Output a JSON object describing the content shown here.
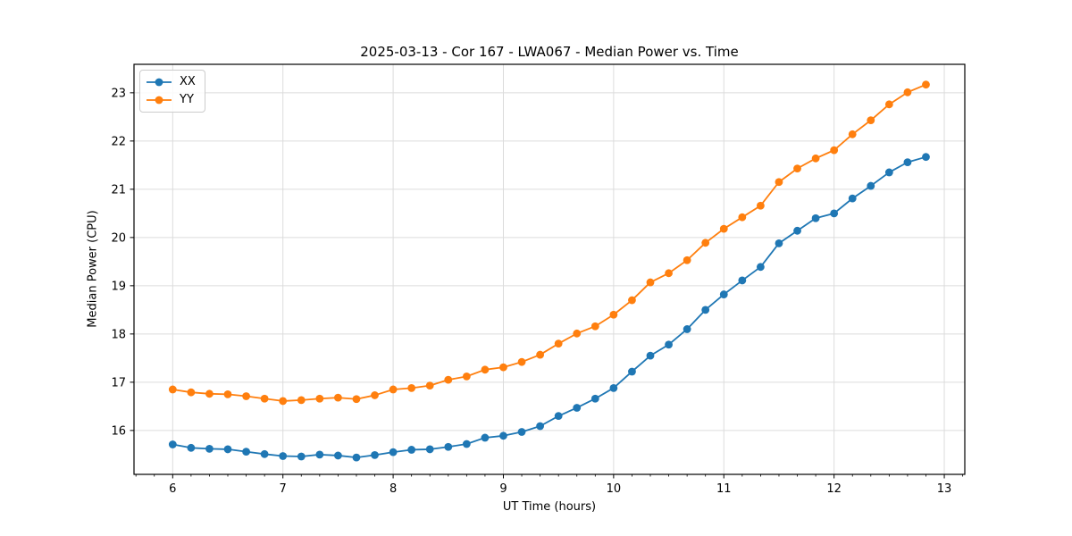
{
  "title": "2025-03-13 - Cor 167 - LWA067 - Median Power vs. Time",
  "chart_data": {
    "type": "line",
    "title": "2025-03-13 - Cor 167 - LWA067 - Median Power vs. Time",
    "xlabel": "UT Time (hours)",
    "ylabel": "Median Power (CPU)",
    "xlim": [
      5.649,
      13.186
    ],
    "ylim": [
      15.09,
      23.59
    ],
    "x_major_ticks": [
      6,
      7,
      8,
      9,
      10,
      11,
      12,
      13
    ],
    "x_major_tick_labels": [
      "6",
      "7",
      "8",
      "9",
      "10",
      "11",
      "12",
      "13"
    ],
    "x_minor_tick_step": 0.166667,
    "y_major_ticks": [
      16,
      17,
      18,
      19,
      20,
      21,
      22,
      23
    ],
    "y_major_tick_labels": [
      "16",
      "17",
      "18",
      "19",
      "20",
      "21",
      "22",
      "23"
    ],
    "grid": true,
    "grid_color": "#dcdcdc",
    "spine_color": "#000000",
    "background": "#ffffff",
    "legend_position": "upper-left",
    "x": [
      6.0,
      6.1667,
      6.3333,
      6.5,
      6.6667,
      6.8333,
      7.0,
      7.1667,
      7.3333,
      7.5,
      7.6667,
      7.8333,
      8.0,
      8.1667,
      8.3333,
      8.5,
      8.6667,
      8.8333,
      9.0,
      9.1667,
      9.3333,
      9.5,
      9.6667,
      9.8333,
      10.0,
      10.1667,
      10.3333,
      10.5,
      10.6667,
      10.8333,
      11.0,
      11.1667,
      11.3333,
      11.5,
      11.6667,
      11.8333,
      12.0,
      12.1667,
      12.3333,
      12.5,
      12.6667,
      12.8333
    ],
    "series": [
      {
        "name": "XX",
        "color": "#1f77b4",
        "values": [
          15.71,
          15.64,
          15.62,
          15.61,
          15.56,
          15.51,
          15.47,
          15.46,
          15.5,
          15.48,
          15.44,
          15.49,
          15.55,
          15.6,
          15.61,
          15.66,
          15.72,
          15.85,
          15.89,
          15.97,
          16.09,
          16.3,
          16.47,
          16.66,
          16.88,
          17.22,
          17.55,
          17.78,
          18.1,
          18.5,
          18.82,
          19.11,
          19.39,
          19.88,
          20.14,
          20.4,
          20.5,
          20.81,
          21.07,
          21.35,
          21.56,
          21.67
        ]
      },
      {
        "name": "YY",
        "color": "#ff7f0e",
        "values": [
          16.85,
          16.79,
          16.76,
          16.75,
          16.71,
          16.66,
          16.61,
          16.63,
          16.66,
          16.68,
          16.65,
          16.73,
          16.85,
          16.88,
          16.93,
          17.05,
          17.12,
          17.26,
          17.31,
          17.42,
          17.57,
          17.8,
          18.01,
          18.16,
          18.4,
          18.7,
          19.07,
          19.26,
          19.53,
          19.89,
          20.18,
          20.42,
          20.66,
          21.15,
          21.43,
          21.64,
          21.81,
          22.14,
          22.43,
          22.76,
          23.01,
          23.17
        ]
      }
    ]
  },
  "legend": {
    "items": [
      {
        "label": "XX",
        "color": "#1f77b4"
      },
      {
        "label": "YY",
        "color": "#ff7f0e"
      }
    ]
  }
}
